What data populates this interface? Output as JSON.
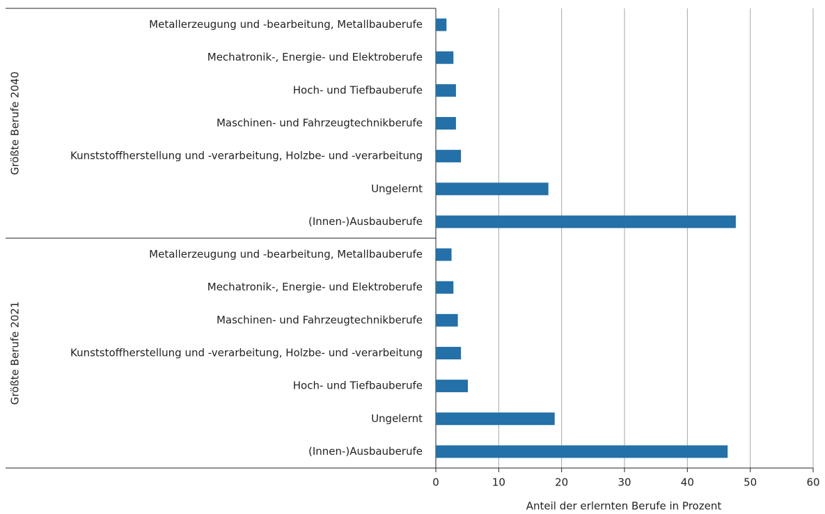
{
  "chart_data": {
    "type": "bar",
    "orientation": "horizontal",
    "color": "#2470a8",
    "xlabel": "Anteil der erlernten  Berufe in Prozent",
    "xlim": [
      0,
      60
    ],
    "xticks": [
      0,
      10,
      20,
      30,
      40,
      50,
      60
    ],
    "grid": true,
    "groups": [
      {
        "label": "Größte Berufe 2040",
        "categories": [
          "Metallerzeugung und -bearbeitung, Metallbauberufe",
          "Mechatronik-, Energie- und Elektroberufe",
          "Hoch- und Tiefbauberufe",
          "Maschinen- und Fahrzeugtechnikberufe",
          "Kunststoffherstellung und -verarbeitung, Holzbe- und -verarbeitung",
          "Ungelernt",
          "(Innen-)Ausbauberufe"
        ],
        "values": [
          1.7,
          2.8,
          3.2,
          3.2,
          4.0,
          17.9,
          47.7
        ]
      },
      {
        "label": "Größte Berufe 2021",
        "categories": [
          "Metallerzeugung und -bearbeitung, Metallbauberufe",
          "Mechatronik-, Energie- und Elektroberufe",
          "Maschinen- und Fahrzeugtechnikberufe",
          "Kunststoffherstellung und -verarbeitung, Holzbe- und -verarbeitung",
          "Hoch- und Tiefbauberufe",
          "Ungelernt",
          "(Innen-)Ausbauberufe"
        ],
        "values": [
          2.5,
          2.8,
          3.5,
          4.0,
          5.1,
          18.9,
          46.4
        ]
      }
    ]
  }
}
